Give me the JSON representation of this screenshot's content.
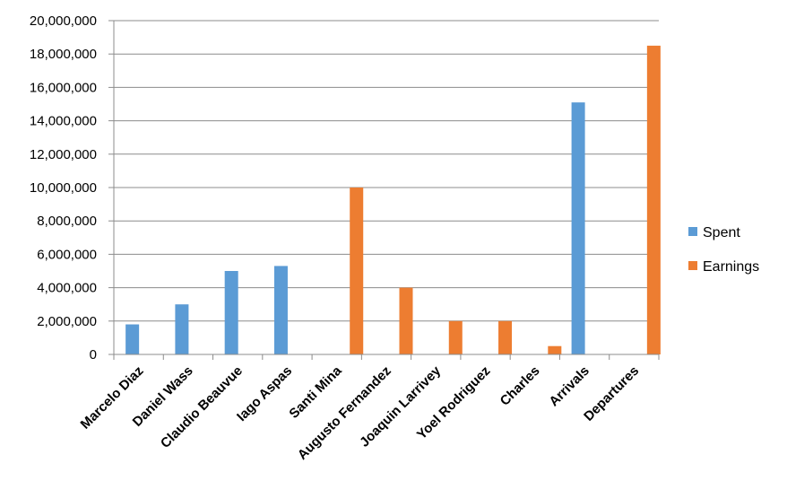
{
  "chart_data": {
    "type": "bar",
    "categories": [
      "Marcelo Diaz",
      "Daniel Wass",
      "Claudio Beauvue",
      "Iago Aspas",
      "Santi Mina",
      "Augusto Fernandez",
      "Joaquin Larrivey",
      "Yoel Rodriguez",
      "Charles",
      "Arrivals",
      "Departures"
    ],
    "series": [
      {
        "name": "Spent",
        "color": "#5B9BD5",
        "values": [
          1800000,
          3000000,
          5000000,
          5300000,
          null,
          null,
          null,
          null,
          null,
          15100000,
          null
        ]
      },
      {
        "name": "Earnings",
        "color": "#ED7D31",
        "values": [
          null,
          null,
          null,
          null,
          10000000,
          4000000,
          2000000,
          2000000,
          500000,
          null,
          18500000
        ]
      }
    ],
    "ylim": [
      0,
      20000000
    ],
    "yticks": [
      "0",
      "2,000,000",
      "4,000,000",
      "6,000,000",
      "8,000,000",
      "10,000,000",
      "12,000,000",
      "14,000,000",
      "16,000,000",
      "18,000,000",
      "20,000,000"
    ],
    "grid": true,
    "legend_position": "right",
    "title": "",
    "xlabel": "",
    "ylabel": ""
  }
}
